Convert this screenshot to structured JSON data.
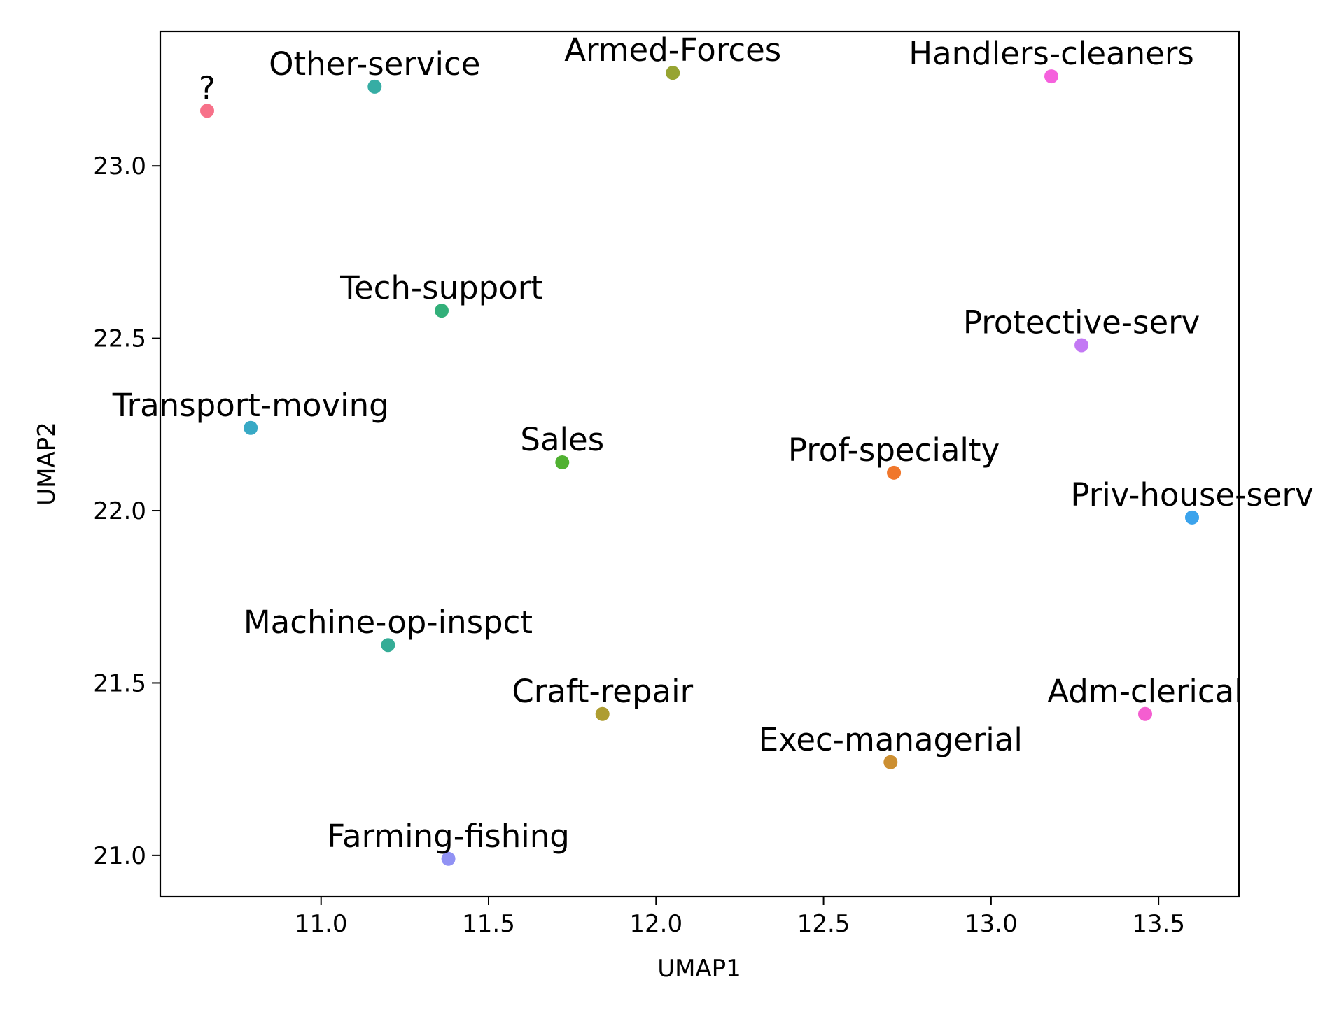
{
  "chart_data": {
    "type": "scatter",
    "title": "",
    "xlabel": "UMAP1",
    "ylabel": "UMAP2",
    "xlim": [
      10.52,
      13.74
    ],
    "ylim": [
      20.88,
      23.39
    ],
    "grid": false,
    "legend": "none",
    "x_ticks": [
      {
        "value": 11.0,
        "label": "11.0"
      },
      {
        "value": 11.5,
        "label": "11.5"
      },
      {
        "value": 12.0,
        "label": "12.0"
      },
      {
        "value": 12.5,
        "label": "12.5"
      },
      {
        "value": 13.0,
        "label": "13.0"
      },
      {
        "value": 13.5,
        "label": "13.5"
      }
    ],
    "y_ticks": [
      {
        "value": 21.0,
        "label": "21.0"
      },
      {
        "value": 21.5,
        "label": "21.5"
      },
      {
        "value": 22.0,
        "label": "22.0"
      },
      {
        "value": 22.5,
        "label": "22.5"
      },
      {
        "value": 23.0,
        "label": "23.0"
      }
    ],
    "points": [
      {
        "label": "?",
        "x": 10.66,
        "y": 23.16,
        "color": "#f77189"
      },
      {
        "label": "Other-service",
        "x": 11.16,
        "y": 23.23,
        "color": "#36ada4"
      },
      {
        "label": "Armed-Forces",
        "x": 12.05,
        "y": 23.27,
        "color": "#97a431"
      },
      {
        "label": "Handlers-cleaners",
        "x": 13.18,
        "y": 23.26,
        "color": "#f561dd"
      },
      {
        "label": "Tech-support",
        "x": 11.36,
        "y": 22.58,
        "color": "#33b07a"
      },
      {
        "label": "Protective-serv",
        "x": 13.27,
        "y": 22.48,
        "color": "#c379f4"
      },
      {
        "label": "Transport-moving",
        "x": 10.79,
        "y": 22.24,
        "color": "#38a9c5"
      },
      {
        "label": "Sales",
        "x": 11.72,
        "y": 22.14,
        "color": "#50b131"
      },
      {
        "label": "Prof-specialty",
        "x": 12.71,
        "y": 22.11,
        "color": "#f0772c"
      },
      {
        "label": "Priv-house-serv",
        "x": 13.6,
        "y": 21.98,
        "color": "#3ba3ec"
      },
      {
        "label": "Machine-op-inspct",
        "x": 11.2,
        "y": 21.61,
        "color": "#35ac96"
      },
      {
        "label": "Craft-repair",
        "x": 11.84,
        "y": 21.41,
        "color": "#ae9d31"
      },
      {
        "label": "Adm-clerical",
        "x": 13.46,
        "y": 21.41,
        "color": "#f45ed0"
      },
      {
        "label": "Exec-managerial",
        "x": 12.7,
        "y": 21.27,
        "color": "#cc8f32"
      },
      {
        "label": "Farming-fishing",
        "x": 11.38,
        "y": 20.99,
        "color": "#9192f4"
      }
    ]
  }
}
